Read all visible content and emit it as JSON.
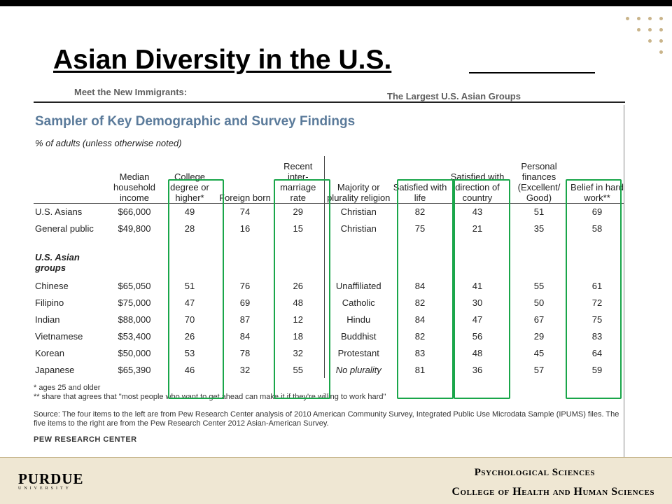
{
  "slide": {
    "title": "Asian Diversity in the U.S."
  },
  "header": {
    "left": "Meet the New Immigrants:",
    "right": "The Largest U.S. Asian Groups"
  },
  "table": {
    "heading": "Sampler of Key Demographic and Survey Findings",
    "subheading": "% of adults (unless otherwise noted)",
    "columns": [
      "Median household income",
      "College degree or higher*",
      "Foreign born",
      "Recent inter-marriage rate",
      "Majority or plurality religion",
      "Satisfied with life",
      "Satisfied with direction of country",
      "Personal finances (Excellent/ Good)",
      "Belief in hard work**"
    ],
    "rows_top": [
      {
        "label": "U.S. Asians",
        "values": [
          "$66,000",
          "49",
          "74",
          "29",
          "Christian",
          "82",
          "43",
          "51",
          "69"
        ]
      },
      {
        "label": "General public",
        "values": [
          "$49,800",
          "28",
          "16",
          "15",
          "Christian",
          "75",
          "21",
          "35",
          "58"
        ]
      }
    ],
    "group_label": "U.S. Asian groups",
    "rows_groups": [
      {
        "label": "Chinese",
        "values": [
          "$65,050",
          "51",
          "76",
          "26",
          "Unaffiliated",
          "84",
          "41",
          "55",
          "61"
        ]
      },
      {
        "label": "Filipino",
        "values": [
          "$75,000",
          "47",
          "69",
          "48",
          "Catholic",
          "82",
          "30",
          "50",
          "72"
        ]
      },
      {
        "label": "Indian",
        "values": [
          "$88,000",
          "70",
          "87",
          "12",
          "Hindu",
          "84",
          "47",
          "67",
          "75"
        ]
      },
      {
        "label": "Vietnamese",
        "values": [
          "$53,400",
          "26",
          "84",
          "18",
          "Buddhist",
          "82",
          "56",
          "29",
          "83"
        ]
      },
      {
        "label": "Korean",
        "values": [
          "$50,000",
          "53",
          "78",
          "32",
          "Protestant",
          "83",
          "48",
          "45",
          "64"
        ]
      },
      {
        "label": "Japanese",
        "values": [
          "$65,390",
          "46",
          "32",
          "55",
          "No plurality",
          "81",
          "36",
          "57",
          "59"
        ]
      }
    ],
    "footnote1": "* ages 25 and older",
    "footnote2": "** share that agrees that \"most people who want to get ahead can make it if they're willing to work hard\"",
    "source": "Source: The four items to the left are from Pew Research Center analysis of 2010 American Community Survey, Integrated Public Use Microdata Sample (IPUMS) files. The five items to the right are from the Pew Research Center 2012 Asian-American Survey.",
    "credit": "PEW RESEARCH CENTER"
  },
  "footer": {
    "logo_main": "PURDUE",
    "logo_sub": "UNIVERSITY",
    "line1": "Psychological Sciences",
    "line2": "College of Health and Human Sciences"
  },
  "colors": {
    "highlight_box": "#1aa64a",
    "footer_bg": "#efe7d3",
    "heading": "#5a7a9a"
  }
}
